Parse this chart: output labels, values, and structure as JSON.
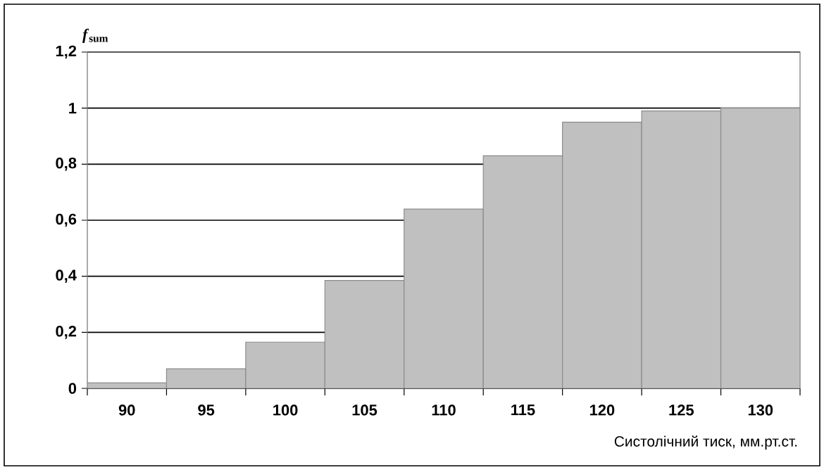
{
  "chart_data": {
    "type": "bar",
    "ylabel": "*f*$_{sum}$",
    "xlabel": "Систолічний тиск, мм.рт.ст.",
    "categories": [
      "90",
      "95",
      "100",
      "105",
      "110",
      "115",
      "120",
      "125",
      "130"
    ],
    "values": [
      0.02,
      0.07,
      0.165,
      0.385,
      0.64,
      0.83,
      0.95,
      0.99,
      1.0
    ],
    "color": "#c0c0c0",
    "ylim": [
      0,
      1.2
    ],
    "yticks": [
      0,
      {
        "value": 0.2,
        "label": "0,2"
      },
      {
        "value": 0.4,
        "label": "0,4"
      },
      {
        "value": 0.6,
        "label": "0,6"
      },
      {
        "value": 0.8,
        "label": "0,8"
      },
      1,
      {
        "value": 1.2,
        "label": "1,2"
      }
    ],
    "grid": "y"
  }
}
